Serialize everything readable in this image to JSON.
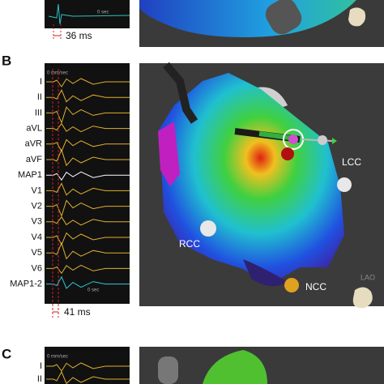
{
  "panel_top": {
    "time": "0 sec",
    "interval": "36 ms"
  },
  "panel_b": {
    "label": "B",
    "ecg": {
      "speed": "0 mm/sec",
      "time": "0 sec",
      "leads": [
        "I",
        "II",
        "III",
        "aVL",
        "aVR",
        "aVF",
        "MAP1",
        "V1",
        "V2",
        "V3",
        "V4",
        "V5",
        "V6",
        "MAP1-2"
      ],
      "interval": "41 ms"
    },
    "map": {
      "landmarks": [
        "LCC",
        "RCC",
        "NCC"
      ],
      "view": "LAO"
    }
  },
  "panel_c": {
    "label": "C",
    "ecg": {
      "speed": "0 mm/sec",
      "leads": [
        "I",
        "II"
      ]
    }
  }
}
